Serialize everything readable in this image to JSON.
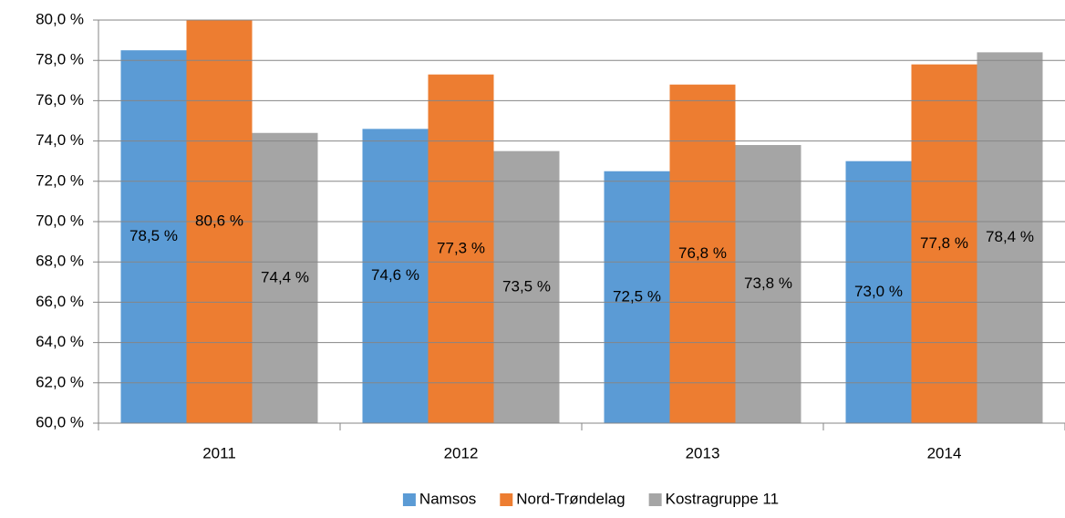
{
  "chart_data": {
    "type": "bar",
    "categories": [
      "2011",
      "2012",
      "2013",
      "2014"
    ],
    "series": [
      {
        "name": "Namsos",
        "color": "#5b9bd5",
        "values": [
          78.5,
          74.6,
          72.5,
          73.0
        ],
        "value_labels": [
          "78,5 %",
          "74,6 %",
          "72,5 %",
          "73,0 %"
        ]
      },
      {
        "name": "Nord-Trøndelag",
        "color": "#ed7d31",
        "values": [
          80.6,
          77.3,
          76.8,
          77.8
        ],
        "value_labels": [
          "80,6 %",
          "77,3 %",
          "76,8 %",
          "77,8 %"
        ]
      },
      {
        "name": "Kostragruppe 11",
        "color": "#a5a5a5",
        "values": [
          74.4,
          73.5,
          73.8,
          78.4
        ],
        "value_labels": [
          "74,4 %",
          "73,5 %",
          "73,8 %",
          "78,4 %"
        ]
      }
    ],
    "ylim": [
      60,
      80
    ],
    "yticks": [
      {
        "value": 60,
        "label": "60,0 %"
      },
      {
        "value": 62,
        "label": "62,0 %"
      },
      {
        "value": 64,
        "label": "64,0 %"
      },
      {
        "value": 66,
        "label": "66,0 %"
      },
      {
        "value": 68,
        "label": "68,0 %"
      },
      {
        "value": 70,
        "label": "70,0 %"
      },
      {
        "value": 72,
        "label": "72,0 %"
      },
      {
        "value": 74,
        "label": "74,0 %"
      },
      {
        "value": 76,
        "label": "76,0 %"
      },
      {
        "value": 78,
        "label": "78,0 %"
      },
      {
        "value": 80,
        "label": "80,0 %"
      }
    ],
    "grid": true,
    "legend": "bottom"
  }
}
